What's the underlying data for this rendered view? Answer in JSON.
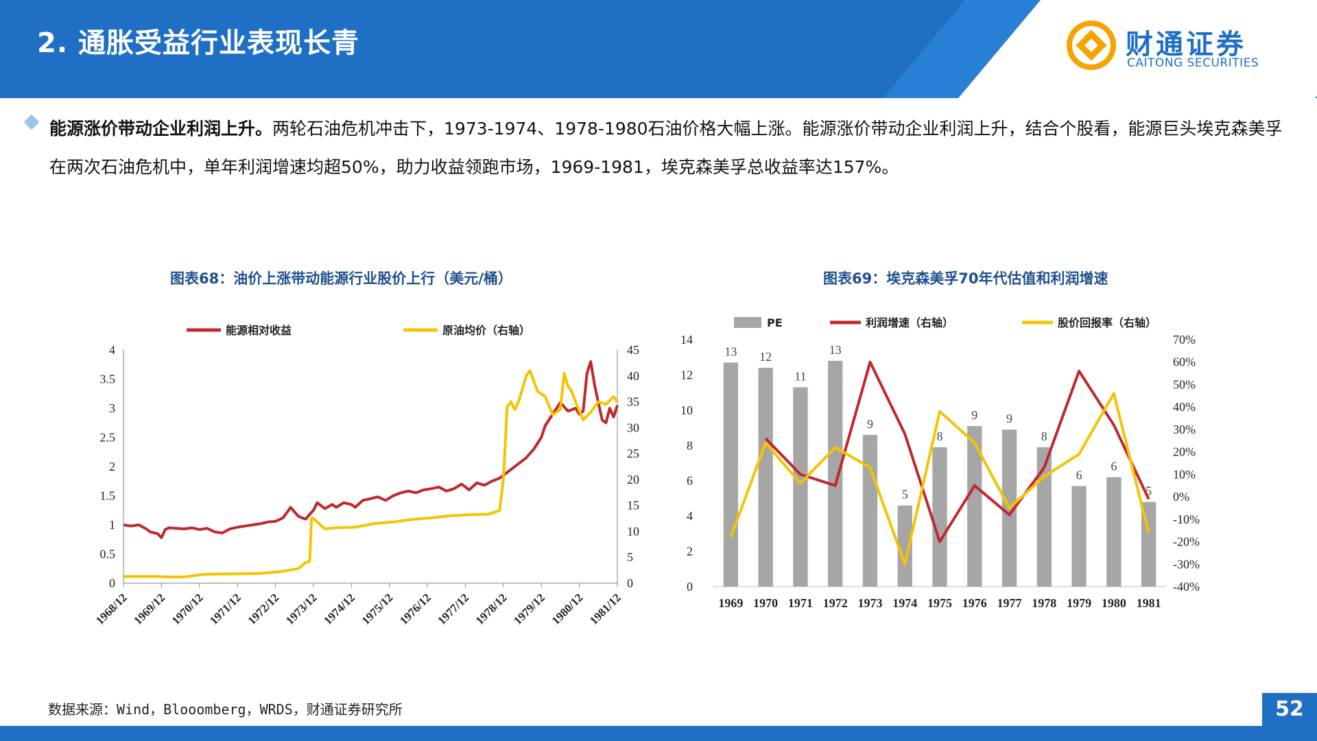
{
  "header": {
    "title": "2. 通胀受益行业表现长青",
    "logo_cn": "财通证券",
    "logo_en": "CAITONG SECURITIES"
  },
  "paragraph": {
    "lead": "能源涨价带动企业利润上升。",
    "body": "两轮石油危机冲击下，1973-1974、1978-1980石油价格大幅上涨。能源涨价带动企业利润上升，结合个股看，能源巨头埃克森美孚在两次石油危机中，单年利润增速均超50%，助力收益领跑市场，1969-1981，埃克森美孚总收益率达157%。"
  },
  "source": "数据来源：Wind，Blooomberg，WRDS，财通证券研究所",
  "page_number": "52",
  "colors": {
    "brand": "#1f6fc5",
    "red": "#c0282d",
    "yellow": "#f5c400",
    "gray": "#a6a6a6",
    "title": "#1f4f8f"
  },
  "chart_data": [
    {
      "type": "line",
      "title": "图表68：油价上涨带动能源行业股价上行（美元/桶）",
      "x_ticks": [
        "1968/12",
        "1969/12",
        "1970/12",
        "1971/12",
        "1972/12",
        "1973/12",
        "1974/12",
        "1975/12",
        "1976/12",
        "1977/12",
        "1978/12",
        "1979/12",
        "1980/12",
        "1981/12"
      ],
      "y_left": {
        "lim": [
          0,
          4
        ],
        "ticks": [
          "0",
          "0.5",
          "1",
          "1.5",
          "2",
          "2.5",
          "3",
          "3.5",
          "4"
        ]
      },
      "y_right": {
        "lim": [
          0,
          45
        ],
        "ticks": [
          "0",
          "5",
          "10",
          "15",
          "20",
          "25",
          "30",
          "35",
          "40",
          "45"
        ]
      },
      "legend": "top",
      "series": [
        {
          "name": "能源相对收益",
          "axis": "left",
          "color": "#c0282d",
          "x": [
            1968.9,
            1969.1,
            1969.3,
            1969.5,
            1969.6,
            1969.8,
            1969.9,
            1970.0,
            1970.1,
            1970.3,
            1970.5,
            1970.7,
            1970.9,
            1971.1,
            1971.3,
            1971.5,
            1971.7,
            1971.9,
            1972.1,
            1972.3,
            1972.5,
            1972.7,
            1972.9,
            1973.1,
            1973.3,
            1973.5,
            1973.6,
            1973.7,
            1973.8,
            1973.9,
            1974.0,
            1974.2,
            1974.4,
            1974.5,
            1974.7,
            1974.9,
            1975.0,
            1975.2,
            1975.4,
            1975.6,
            1975.8,
            1976.0,
            1976.2,
            1976.4,
            1976.6,
            1976.8,
            1977.0,
            1977.2,
            1977.4,
            1977.6,
            1977.8,
            1978.0,
            1978.2,
            1978.4,
            1978.6,
            1978.8,
            1978.9,
            1979.1,
            1979.3,
            1979.5,
            1979.7,
            1979.9,
            1980.0,
            1980.2,
            1980.4,
            1980.6,
            1980.8,
            1980.9,
            1981.0,
            1981.1,
            1981.2,
            1981.3,
            1981.4,
            1981.5,
            1981.6,
            1981.7,
            1981.8,
            1981.9
          ],
          "values": [
            1.0,
            0.98,
            1.0,
            0.93,
            0.88,
            0.85,
            0.78,
            0.92,
            0.95,
            0.94,
            0.93,
            0.95,
            0.92,
            0.94,
            0.88,
            0.86,
            0.93,
            0.96,
            0.98,
            1.0,
            1.02,
            1.05,
            1.06,
            1.12,
            1.3,
            1.15,
            1.12,
            1.1,
            1.18,
            1.25,
            1.38,
            1.28,
            1.35,
            1.3,
            1.38,
            1.35,
            1.3,
            1.42,
            1.45,
            1.48,
            1.42,
            1.5,
            1.55,
            1.58,
            1.55,
            1.6,
            1.62,
            1.65,
            1.58,
            1.62,
            1.7,
            1.6,
            1.72,
            1.68,
            1.75,
            1.8,
            1.85,
            1.95,
            2.05,
            2.15,
            2.3,
            2.5,
            2.7,
            2.9,
            3.1,
            2.95,
            3.0,
            2.9,
            2.95,
            3.6,
            3.8,
            3.4,
            3.1,
            2.8,
            2.75,
            3.0,
            2.85,
            3.05
          ]
        },
        {
          "name": "原油均价（右轴）",
          "axis": "right",
          "color": "#f5c400",
          "x": [
            1968.9,
            1969.5,
            1969.8,
            1970.0,
            1970.5,
            1971.0,
            1971.5,
            1972.0,
            1972.5,
            1973.0,
            1973.5,
            1973.7,
            1973.8,
            1973.85,
            1973.9,
            1974.2,
            1974.5,
            1975.0,
            1975.5,
            1976.0,
            1976.5,
            1977.0,
            1977.5,
            1978.0,
            1978.5,
            1978.8,
            1978.9,
            1979.0,
            1979.1,
            1979.2,
            1979.3,
            1979.5,
            1979.6,
            1979.8,
            1980.0,
            1980.2,
            1980.4,
            1980.5,
            1980.6,
            1980.7,
            1980.8,
            1981.0,
            1981.2,
            1981.4,
            1981.6,
            1981.8,
            1981.9
          ],
          "values": [
            1.3,
            1.3,
            1.3,
            1.2,
            1.2,
            1.7,
            1.8,
            1.8,
            1.9,
            2.2,
            2.8,
            4.0,
            4.2,
            12.5,
            12.5,
            10.5,
            10.7,
            10.8,
            11.5,
            11.8,
            12.3,
            12.6,
            13.0,
            13.2,
            13.3,
            14.0,
            20.0,
            34.0,
            35.0,
            33.5,
            35.0,
            40.0,
            41.0,
            37.0,
            36.0,
            32.5,
            33.5,
            40.5,
            38.0,
            37.0,
            35.0,
            31.5,
            33.0,
            35.0,
            34.5,
            36.0,
            35.0
          ]
        }
      ]
    },
    {
      "type": "bar+line",
      "title": "图表69：埃克森美孚70年代估值和利润增速",
      "categories": [
        "1969",
        "1970",
        "1971",
        "1972",
        "1973",
        "1974",
        "1975",
        "1976",
        "1977",
        "1978",
        "1979",
        "1980",
        "1981"
      ],
      "y_left": {
        "lim": [
          0,
          14
        ],
        "ticks": [
          "0",
          "2",
          "4",
          "6",
          "8",
          "10",
          "12",
          "14"
        ]
      },
      "y_right": {
        "lim": [
          -40,
          70
        ],
        "ticks": [
          "-40%",
          "-30%",
          "-20%",
          "-10%",
          "0%",
          "10%",
          "20%",
          "30%",
          "40%",
          "50%",
          "60%",
          "70%"
        ]
      },
      "legend": "top",
      "series": [
        {
          "name": "PE",
          "kind": "bar",
          "axis": "left",
          "color": "#a6a6a6",
          "values": [
            12.7,
            12.4,
            11.3,
            12.8,
            8.6,
            4.6,
            7.9,
            9.1,
            8.9,
            7.9,
            5.7,
            6.2,
            4.8
          ],
          "labels": [
            "13",
            "12",
            "11",
            "13",
            "9",
            "5",
            "8",
            "9",
            "9",
            "8",
            "6",
            "6",
            "5"
          ]
        },
        {
          "name": "利润增速（右轴）",
          "kind": "line",
          "axis": "right",
          "color": "#c0282d",
          "values": [
            null,
            26,
            10,
            5,
            60,
            28,
            -20,
            5,
            -8,
            13,
            56,
            32,
            -1
          ]
        },
        {
          "name": "股价回报率（右轴）",
          "kind": "line",
          "axis": "right",
          "color": "#f5c400",
          "values": [
            -18,
            24,
            6,
            22,
            13,
            -30,
            38,
            24,
            -5,
            9,
            19,
            46,
            -16
          ]
        }
      ]
    }
  ]
}
